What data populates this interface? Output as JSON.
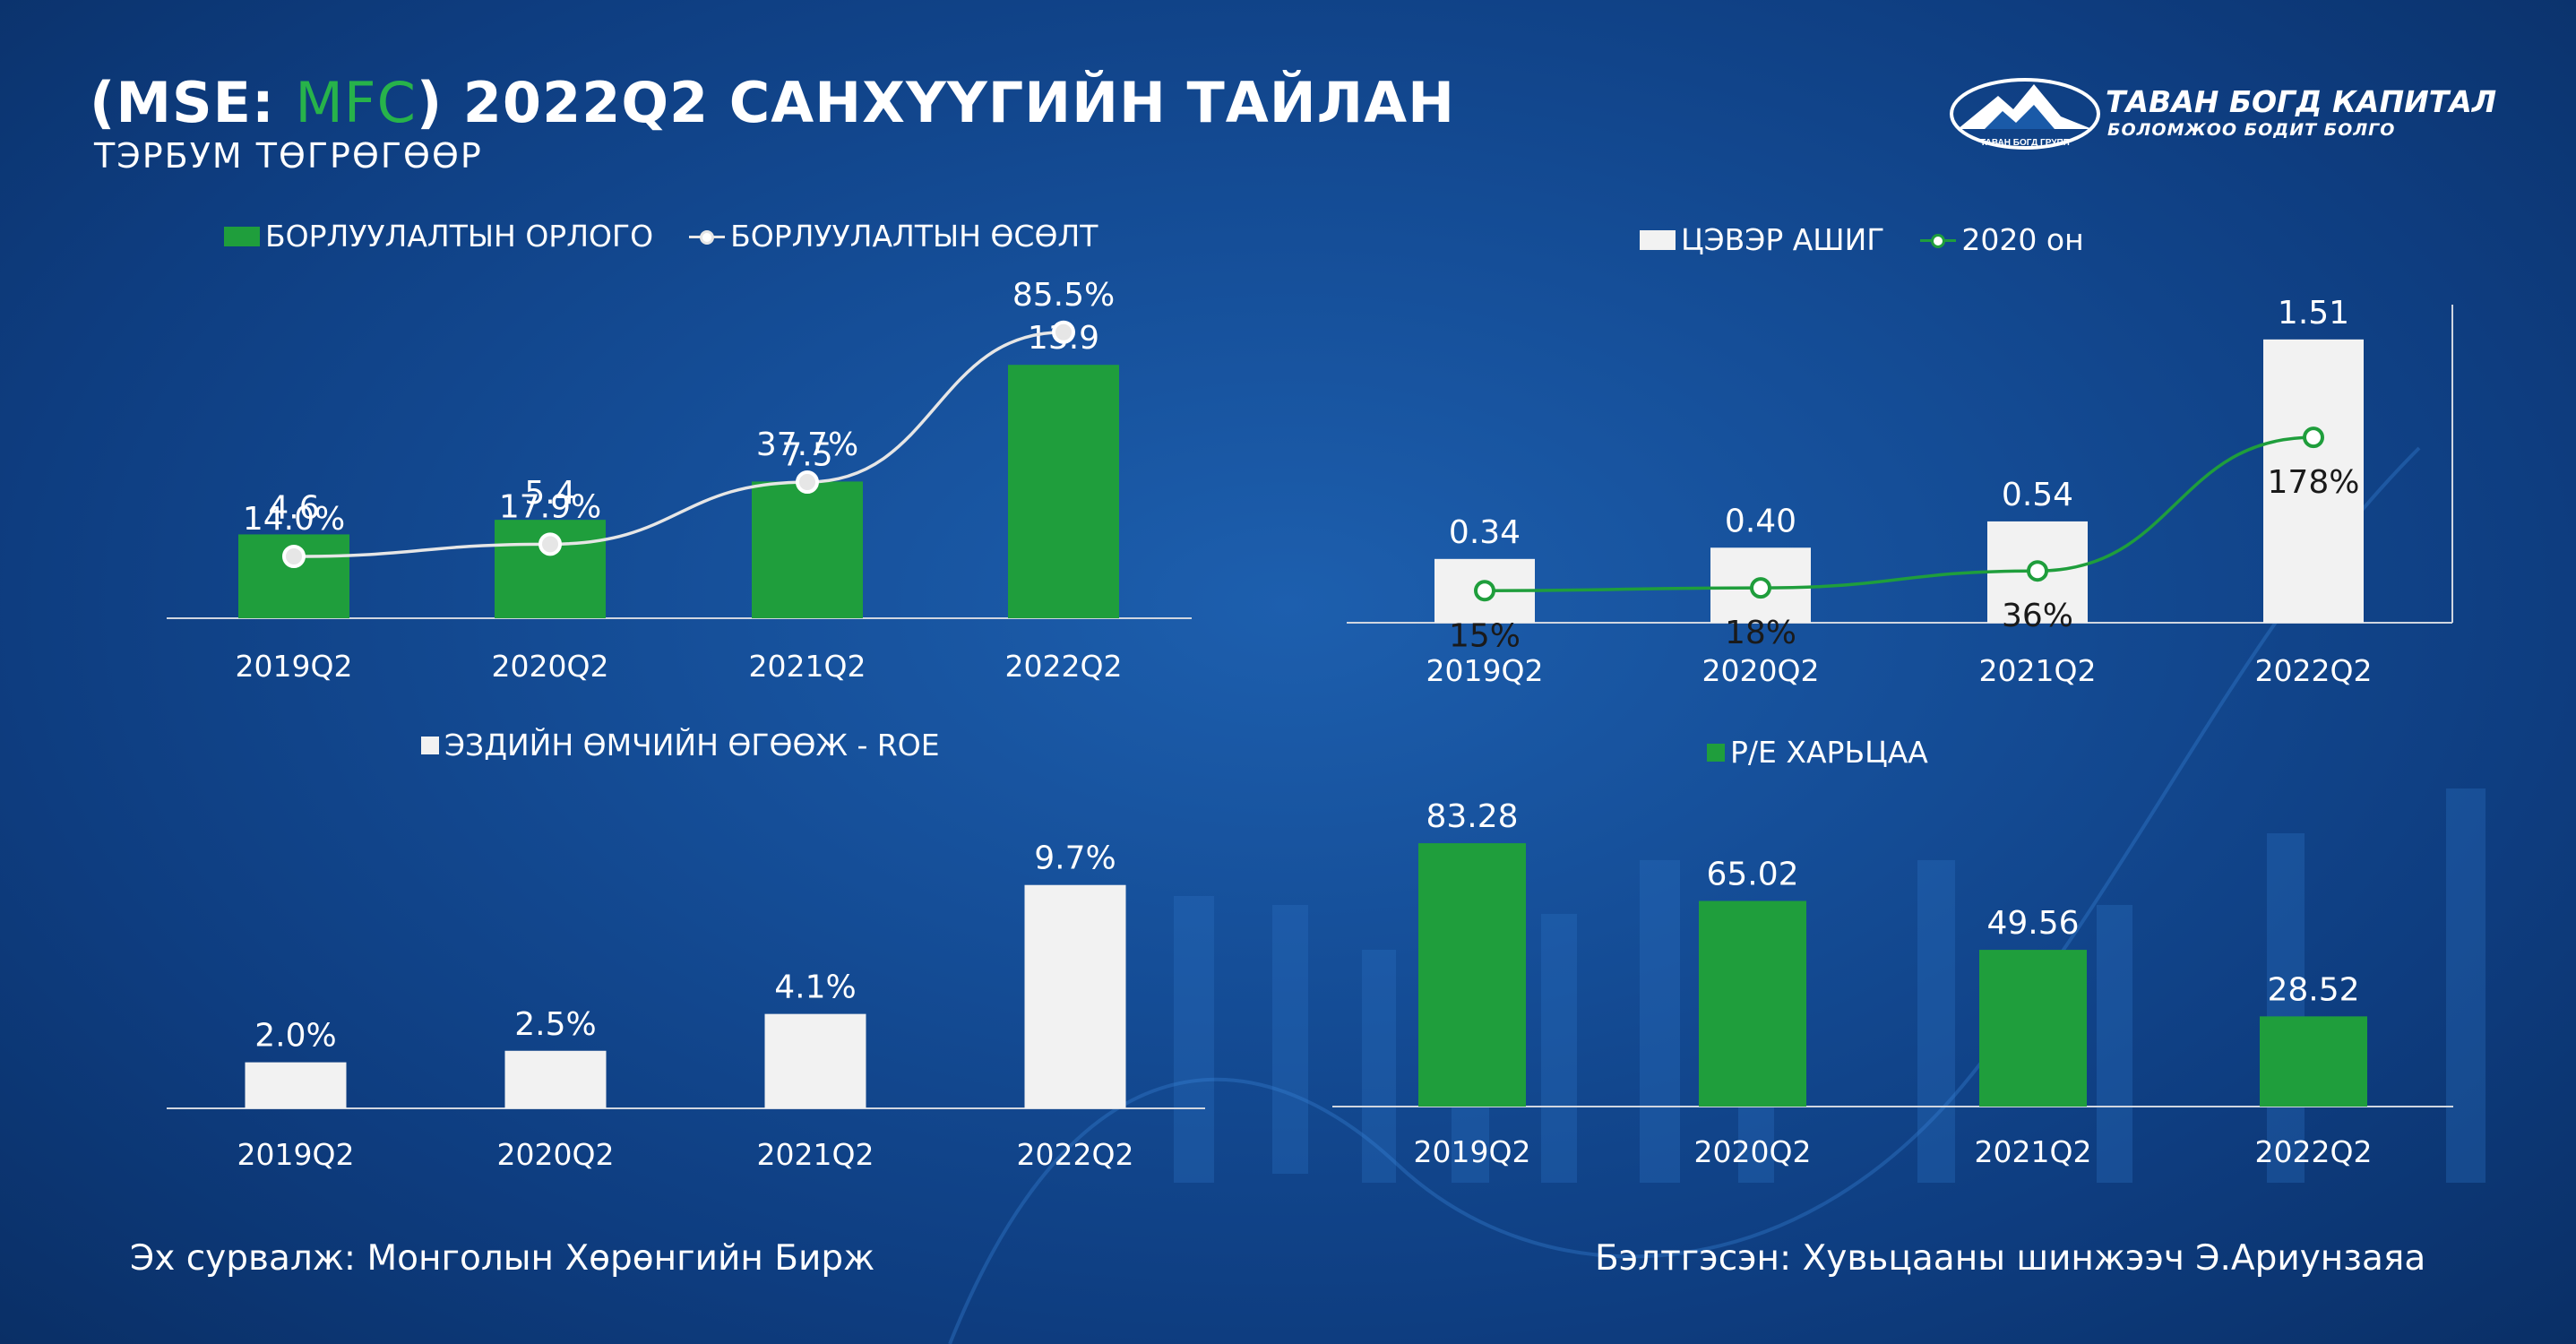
{
  "header": {
    "title_prefix": "(MSE: ",
    "title_ticker": "MFC",
    "title_suffix": ") 2022Q2 САНХҮҮГИЙН ТАЙЛАН",
    "subtitle": "ТЭРБУМ ТӨГРӨГӨӨР"
  },
  "logo": {
    "name": "ТАВАН БОГД КАПИТАЛ",
    "tagline": "БОЛОМЖОО БОДИТ БОЛГО",
    "badge": "ТАВАН БОГД ГРУПП"
  },
  "colors": {
    "green": "#1f9e3c",
    "white_bar": "#f2f2f2",
    "line_gray": "#e6e6e6",
    "line_green": "#1f9e3c"
  },
  "chart_data": [
    {
      "id": "sales",
      "type": "bar+line",
      "categories": [
        "2019Q2",
        "2020Q2",
        "2021Q2",
        "2022Q2"
      ],
      "series": [
        {
          "name": "БОРЛУУЛАЛТЫН ОРЛОГО",
          "kind": "bar",
          "values": [
            4.6,
            5.4,
            7.5,
            13.9
          ],
          "labels": [
            "4.6",
            "5.4",
            "7.5",
            "13.9"
          ]
        },
        {
          "name": "БОРЛУУЛАЛТЫН ӨСӨЛТ",
          "kind": "line",
          "values": [
            14.0,
            17.9,
            37.7,
            85.5
          ],
          "labels": [
            "14.0%",
            "17.9%",
            "37.7%",
            "85.5%"
          ]
        }
      ],
      "bar_ylim": [
        0,
        14.5
      ],
      "line_ylim": [
        0,
        120
      ]
    },
    {
      "id": "netprofit",
      "type": "bar+line",
      "categories": [
        "2019Q2",
        "2020Q2",
        "2021Q2",
        "2022Q2"
      ],
      "series": [
        {
          "name": "ЦЭВЭР АШИГ",
          "kind": "bar",
          "values": [
            0.34,
            0.4,
            0.54,
            1.51
          ],
          "labels": [
            "0.34",
            "0.40",
            "0.54",
            "1.51"
          ]
        },
        {
          "name": "2020 он",
          "kind": "line",
          "values": [
            15,
            18,
            36,
            178
          ],
          "labels": [
            "15%",
            "18%",
            "36%",
            "178%"
          ]
        }
      ],
      "bar_ylim": [
        0,
        1.6
      ],
      "line_ylim": [
        0,
        300
      ]
    },
    {
      "id": "roe",
      "type": "bar",
      "categories": [
        "2019Q2",
        "2020Q2",
        "2021Q2",
        "2022Q2"
      ],
      "series": [
        {
          "name": "ЭЗДИЙН ӨМЧИЙН ӨГӨӨЖ - ROE",
          "kind": "bar",
          "values": [
            2.0,
            2.5,
            4.1,
            9.7
          ],
          "labels": [
            "2.0%",
            "2.5%",
            "4.1%",
            "9.7%"
          ]
        }
      ],
      "bar_ylim": [
        0,
        10
      ]
    },
    {
      "id": "pe",
      "type": "bar",
      "categories": [
        "2019Q2",
        "2020Q2",
        "2021Q2",
        "2022Q2"
      ],
      "series": [
        {
          "name": "P/E ХАРЬЦАА",
          "kind": "bar",
          "values": [
            83.28,
            65.02,
            49.56,
            28.52
          ],
          "labels": [
            "83.28",
            "65.02",
            "49.56",
            "28.52"
          ]
        }
      ],
      "bar_ylim": [
        0,
        85
      ]
    }
  ],
  "footer": {
    "source": "Эх сурвалж: Монголын Хөрөнгийн Бирж",
    "prepared": "Бэлтгэсэн: Хувьцааны шинжээч Э.Ариунзаяа"
  }
}
